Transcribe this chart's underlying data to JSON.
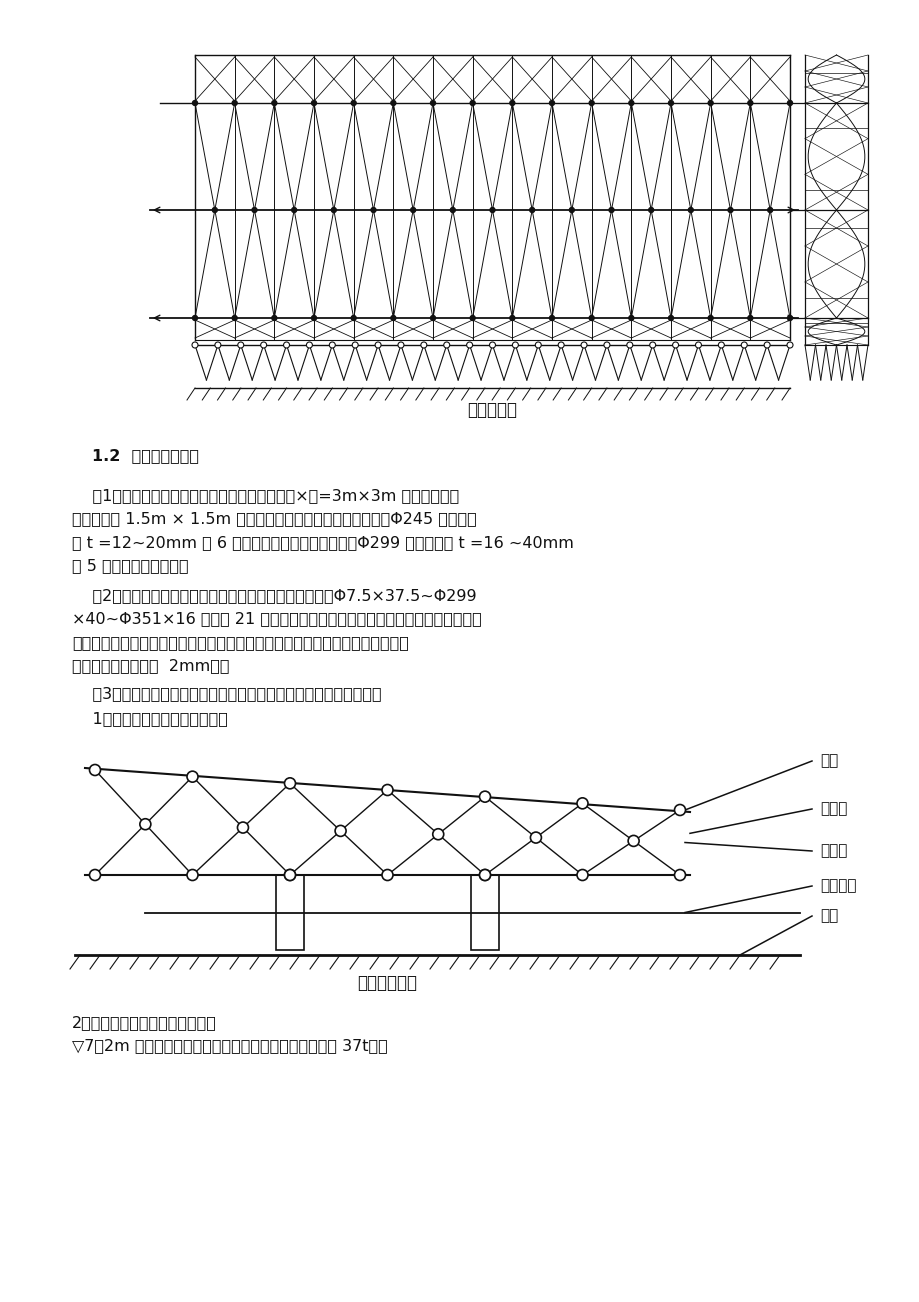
{
  "background_color": "#ffffff",
  "title_top_diagram": "钢屋盖结构",
  "title_bottom_diagram": "截面构造形式",
  "section_title": "1.2  工程特点和难点",
  "p1_l1": "    （1）结构截面变化多。其截面大小由中部的底×高=3m×3m 变化，两端即",
  "p1_l2": "悬挂部分为 1.5m × 1.5m ，而且根据截面受力不同，上弦管（Φ245 无缝管）",
  "p1_l3": "有 t =12~20mm 等 6 种不同的厚度变化，下弦杆（Φ299 无缝管）有 t =16 ~40mm",
  "p1_l4": "等 5 种不同的厚度变化。",
  "p2_l1": "    （2）节点设计复杂，精度要求高。由于杆件种类多（由Φ7.5×37.5~Φ299",
  "p2_l2": "×40~Φ351×16 等多达 21 种），而设计采用的节点形式全部为管一管相贯焊接",
  "p2_l3": "接点，不可避免地将会造成节点处构造空间过小，给节点定位精度提出很高要求",
  "p2_l4": "（设计允许节点偏差  2mm）。",
  "p3_l1": "    （3）结构受力形式独特，不同于国内一般常见形式。本分析如下：",
  "p4_l1": "    1）截面构造形式如下图所示。",
  "p5_l1": "2）长度方向上构造如下图所示。",
  "p5_l2": "▽7．2m 楼板参与结构受力，以抵消结构外推力（最大达 37t）。",
  "label_roof": "屋盖",
  "label_truss": "主桁架",
  "label_cap": "柱帽杆",
  "label_column": "混凝土柱",
  "label_floor": "楼面"
}
